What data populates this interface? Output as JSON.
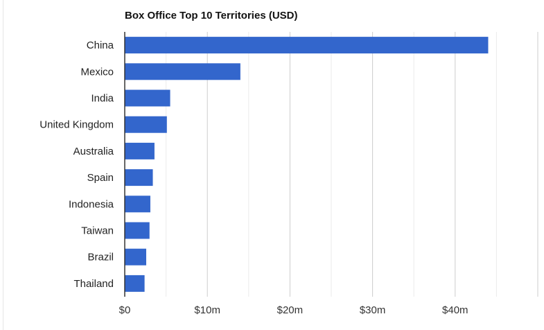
{
  "chart_data": {
    "type": "bar",
    "orientation": "horizontal",
    "title": "Box Office Top 10 Territories (USD)",
    "xlabel": "",
    "ylabel": "",
    "categories": [
      "China",
      "Mexico",
      "India",
      "United Kingdom",
      "Australia",
      "Spain",
      "Indonesia",
      "Taiwan",
      "Brazil",
      "Thailand"
    ],
    "values": [
      44.0,
      14.0,
      5.5,
      5.1,
      3.6,
      3.4,
      3.1,
      3.0,
      2.6,
      2.4
    ],
    "value_unit": "USD millions",
    "xlim": [
      0,
      50
    ],
    "x_ticks": [
      0,
      10,
      20,
      30,
      40
    ],
    "x_tick_labels": [
      "$0",
      "$10m",
      "$20m",
      "$30m",
      "$40m"
    ],
    "grid": true,
    "legend": "none",
    "colors": {
      "bar": "#3366cc",
      "grid": "#cccccc",
      "axis": "#333333"
    }
  }
}
